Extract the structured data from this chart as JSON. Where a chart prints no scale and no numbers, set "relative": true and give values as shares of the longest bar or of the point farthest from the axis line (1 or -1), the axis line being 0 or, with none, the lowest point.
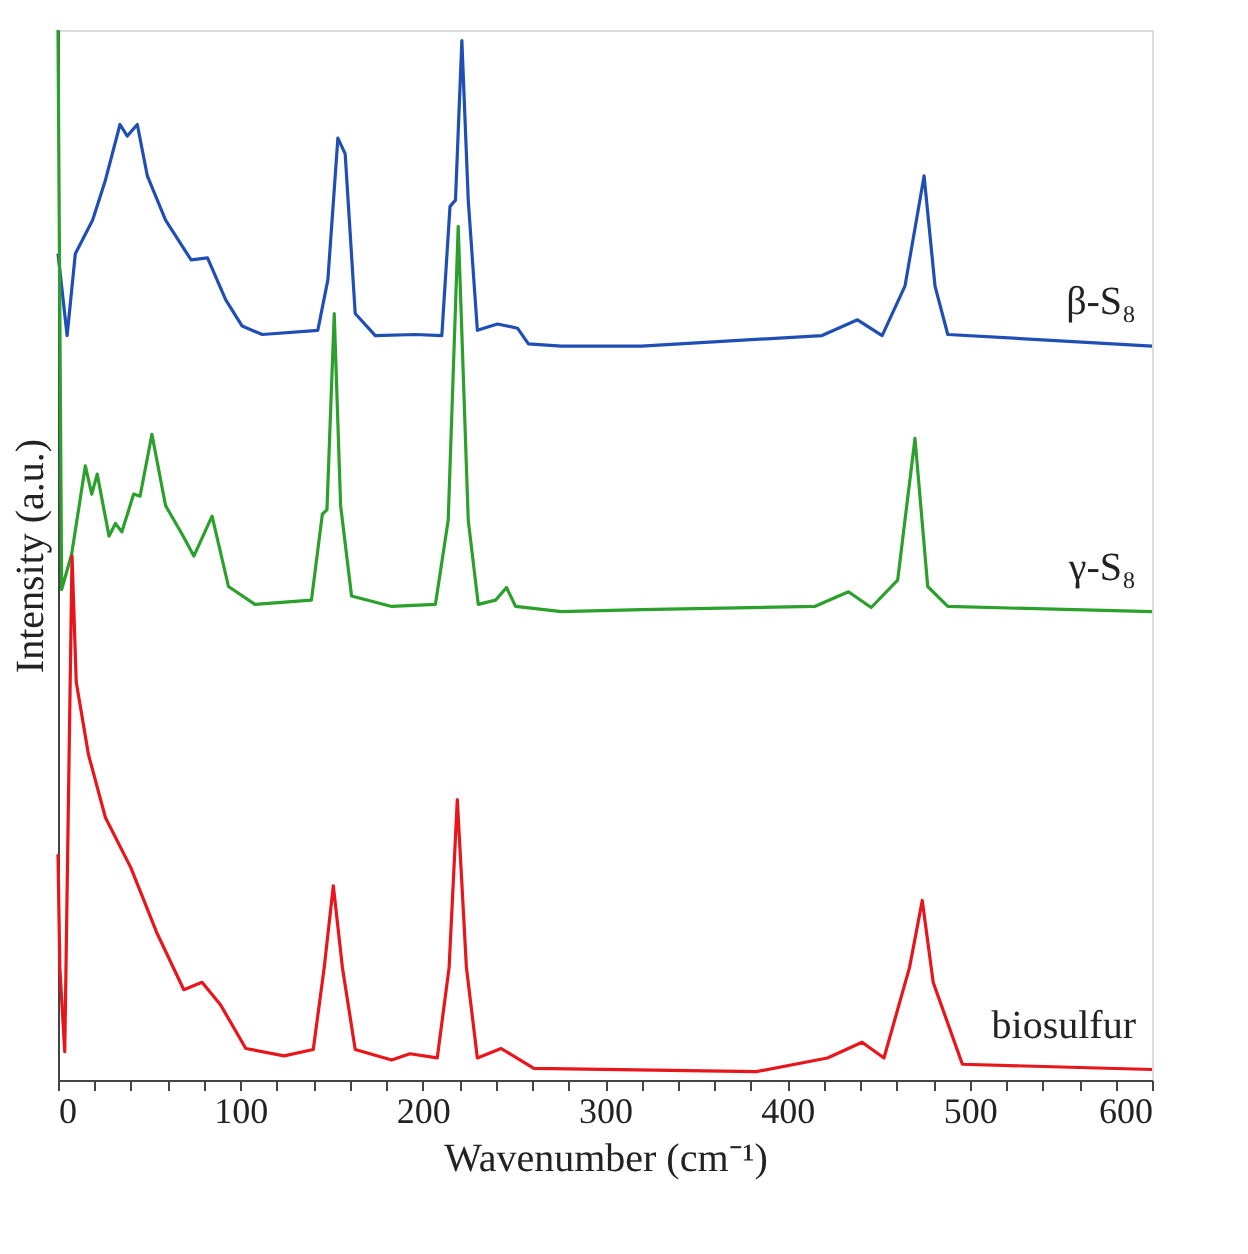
{
  "chart_data": {
    "type": "line",
    "relative": true,
    "xlabel": "Wavenumber (cm⁻¹)",
    "ylabel": "Intensity (a.u.)",
    "xlim": [
      0,
      600
    ],
    "xticks": [
      0,
      {
        "value": 20,
        "label": null
      },
      {
        "value": 40,
        "label": null
      },
      {
        "value": 60,
        "label": null
      },
      {
        "value": 80,
        "label": null
      },
      100,
      {
        "value": 120,
        "label": null
      },
      {
        "value": 140,
        "label": null
      },
      {
        "value": 160,
        "label": null
      },
      {
        "value": 180,
        "label": null
      },
      200,
      {
        "value": 220,
        "label": null
      },
      {
        "value": 240,
        "label": null
      },
      {
        "value": 260,
        "label": null
      },
      {
        "value": 280,
        "label": null
      },
      300,
      {
        "value": 320,
        "label": null
      },
      {
        "value": 340,
        "label": null
      },
      {
        "value": 360,
        "label": null
      },
      {
        "value": 380,
        "label": null
      },
      400,
      {
        "value": 420,
        "label": null
      },
      {
        "value": 440,
        "label": null
      },
      {
        "value": 460,
        "label": null
      },
      {
        "value": 480,
        "label": null
      },
      500,
      {
        "value": 520,
        "label": null
      },
      {
        "value": 540,
        "label": null
      },
      {
        "value": 560,
        "label": null
      },
      {
        "value": 580,
        "label": null
      },
      600
    ],
    "grid": false,
    "legend": false,
    "line_style": "solid",
    "marker": "none",
    "series": [
      {
        "name": "β-S₈",
        "color": "#1f4fb4",
        "x": [
          0,
          5,
          9.5,
          19,
          26,
          34,
          38,
          43.5,
          49,
          59,
          73,
          82,
          92,
          101,
          112,
          142.5,
          148,
          153.5,
          157.5,
          163,
          174,
          196,
          210.5,
          215,
          218,
          221.5,
          225,
          230,
          241,
          252,
          258,
          276,
          320,
          419,
          438.5,
          452,
          464.5,
          475,
          481,
          488,
          600
        ],
        "values": [
          0.787,
          0.709,
          0.787,
          0.819,
          0.857,
          0.91,
          0.899,
          0.91,
          0.861,
          0.819,
          0.781,
          0.783,
          0.743,
          0.718,
          0.71,
          0.714,
          0.762,
          0.897,
          0.882,
          0.73,
          0.709,
          0.71,
          0.709,
          0.832,
          0.838,
          0.99,
          0.838,
          0.714,
          0.72,
          0.716,
          0.701,
          0.699,
          0.699,
          0.709,
          0.724,
          0.709,
          0.756,
          0.861,
          0.756,
          0.71,
          0.699
        ]
      },
      {
        "name": "γ-S₈",
        "color": "#2ca02c",
        "x": [
          0,
          2,
          7.5,
          15,
          18.5,
          21.5,
          28,
          31.5,
          35,
          41.5,
          45,
          51.5,
          59,
          68,
          74.5,
          84.5,
          93.5,
          108,
          139,
          145,
          147.5,
          151.5,
          155,
          161,
          183,
          207,
          214,
          219.5,
          225,
          230.5,
          240,
          246,
          251,
          276,
          320,
          415,
          433.5,
          446,
          460.5,
          470,
          477,
          488,
          600
        ],
        "values": [
          1.0,
          0.467,
          0.501,
          0.585,
          0.558,
          0.577,
          0.518,
          0.53,
          0.522,
          0.558,
          0.556,
          0.615,
          0.547,
          0.52,
          0.499,
          0.537,
          0.47,
          0.453,
          0.457,
          0.539,
          0.543,
          0.73,
          0.547,
          0.461,
          0.451,
          0.453,
          0.533,
          0.813,
          0.533,
          0.453,
          0.457,
          0.469,
          0.451,
          0.446,
          0.448,
          0.451,
          0.465,
          0.45,
          0.476,
          0.611,
          0.47,
          0.451,
          0.446
        ]
      },
      {
        "name": "biosulfur",
        "color": "#e8161b",
        "x": [
          0,
          1,
          3.7,
          7.7,
          10,
          16.7,
          26,
          40,
          54,
          69,
          79,
          89,
          103,
          124,
          140,
          146,
          151,
          156,
          163,
          183,
          193,
          208,
          214.5,
          219,
          224,
          230,
          243,
          261,
          383,
          422,
          441,
          453,
          467,
          474,
          480,
          496,
          600
        ],
        "values": [
          0.215,
          0.107,
          0.027,
          0.499,
          0.379,
          0.31,
          0.25,
          0.202,
          0.141,
          0.086,
          0.093,
          0.072,
          0.03,
          0.023,
          0.029,
          0.107,
          0.185,
          0.107,
          0.029,
          0.019,
          0.025,
          0.021,
          0.107,
          0.267,
          0.107,
          0.021,
          0.03,
          0.011,
          0.008,
          0.021,
          0.036,
          0.021,
          0.107,
          0.171,
          0.093,
          0.015,
          0.01
        ]
      }
    ]
  }
}
